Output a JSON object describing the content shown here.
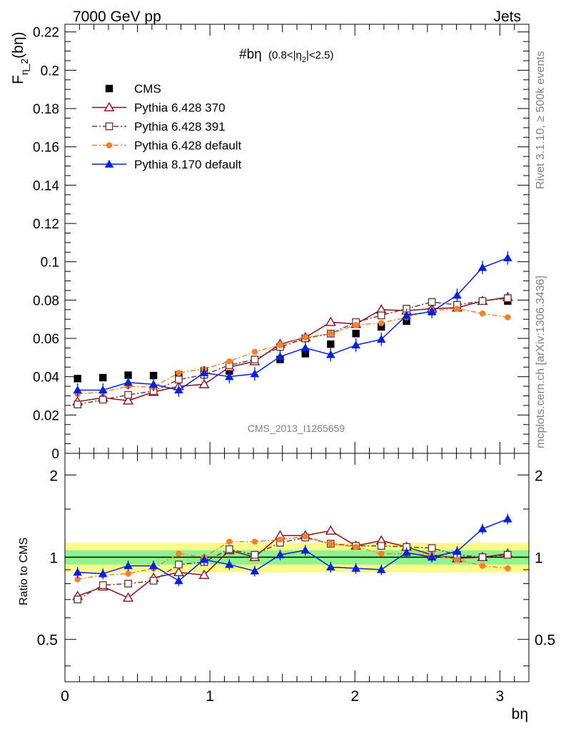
{
  "header": {
    "energy_label": "7000 GeV pp",
    "process_label": "Jets"
  },
  "side_labels": {
    "rivet": "Rivet 3.1.10, ≥ 500k events",
    "mcplots": "mcplots.cern.ch [arXiv:1306.3436]"
  },
  "watermark": "CMS_2013_I1265659",
  "colors": {
    "cms": "#000000",
    "p370": "#8b0d1a",
    "p391": "#6b3d3d",
    "p6def": "#ff7f2a",
    "p8def": "#0022dd",
    "band_inner": "#8ef58e",
    "band_outer": "#fbfb8c"
  },
  "chart_data": [
    {
      "type": "scatter",
      "title": "#bη (0.8<|η₂|<2.5)",
      "title_main": "#bη",
      "title_cut_pre": "(0.8<|η",
      "title_cut_sub": "2",
      "title_cut_post": "|<2.5)",
      "ylabel_main": "F",
      "ylabel_sub": "η_2",
      "ylabel_post": "(bη)",
      "xlim": [
        0,
        3.2
      ],
      "ylim": [
        0,
        0.224
      ],
      "yticks": [
        "0",
        "0.02",
        "0.04",
        "0.06",
        "0.08",
        "0.1",
        "0.12",
        "0.14",
        "0.16",
        "0.18",
        "0.2",
        "0.22"
      ],
      "x": [
        0.087,
        0.262,
        0.436,
        0.611,
        0.785,
        0.96,
        1.134,
        1.309,
        1.484,
        1.658,
        1.833,
        2.007,
        2.182,
        2.356,
        2.531,
        2.705,
        2.88,
        3.054
      ],
      "legend_position": "top-left",
      "series": [
        {
          "name": "CMS",
          "marker": "square-filled",
          "values": [
            0.039,
            0.0395,
            0.0408,
            0.0406,
            0.041,
            0.043,
            0.043,
            0.048,
            0.049,
            0.052,
            0.057,
            0.0625,
            0.066,
            0.069,
            0.074,
            0.077,
            0.0795,
            0.0795
          ]
        },
        {
          "name": "Pythia 6.428 370",
          "marker": "triangle-open",
          "values": [
            0.027,
            0.029,
            0.0275,
            0.032,
            0.035,
            0.036,
            0.045,
            0.048,
            0.057,
            0.0605,
            0.0685,
            0.0675,
            0.075,
            0.0745,
            0.0755,
            0.076,
            0.0795,
            0.0815
          ]
        },
        {
          "name": "Pythia 6.428 391",
          "marker": "square-open",
          "values": [
            0.0255,
            0.028,
            0.0305,
            0.0325,
            0.0385,
            0.041,
            0.046,
            0.049,
            0.0555,
            0.06,
            0.0625,
            0.0685,
            0.072,
            0.0755,
            0.079,
            0.0775,
            0.0795,
            0.081
          ]
        },
        {
          "name": "Pythia 6.428 default",
          "marker": "circle-filled",
          "values": [
            0.031,
            0.032,
            0.035,
            0.0345,
            0.042,
            0.044,
            0.048,
            0.053,
            0.0565,
            0.0605,
            0.0625,
            0.067,
            0.068,
            0.071,
            0.0745,
            0.0755,
            0.073,
            0.071
          ]
        },
        {
          "name": "Pythia 8.170 default",
          "marker": "triangle-filled",
          "values": [
            0.033,
            0.033,
            0.037,
            0.036,
            0.033,
            0.042,
            0.04,
            0.0415,
            0.0505,
            0.055,
            0.0515,
            0.0565,
            0.0595,
            0.072,
            0.074,
            0.0825,
            0.097,
            0.102
          ]
        }
      ]
    },
    {
      "type": "scatter",
      "ylabel": "Ratio to CMS",
      "xlabel": "bη",
      "xlim": [
        0,
        3.2
      ],
      "ylim": [
        0.35,
        2.4
      ],
      "yscale": "log",
      "yticks": [
        "0.5",
        "1",
        "2"
      ],
      "xticks": [
        "0",
        "1",
        "2",
        "3"
      ],
      "x": [
        0.087,
        0.262,
        0.436,
        0.611,
        0.785,
        0.96,
        1.134,
        1.309,
        1.484,
        1.658,
        1.833,
        2.007,
        2.182,
        2.356,
        2.531,
        2.705,
        2.88,
        3.054
      ],
      "reference_line": 1.0,
      "band_outer": [
        0.88,
        1.13
      ],
      "band_inner": [
        0.94,
        1.06
      ],
      "series": [
        {
          "name": "Pythia 6.428 370",
          "values": [
            0.72,
            0.78,
            0.71,
            0.84,
            0.88,
            0.86,
            1.06,
            1.0,
            1.2,
            1.2,
            1.25,
            1.1,
            1.15,
            1.09,
            1.02,
            0.99,
            1.0,
            1.03
          ]
        },
        {
          "name": "Pythia 6.428 391",
          "values": [
            0.7,
            0.79,
            0.8,
            0.82,
            0.94,
            0.96,
            1.07,
            1.02,
            1.13,
            1.18,
            1.12,
            1.1,
            1.1,
            1.09,
            1.08,
            1.02,
            1.0,
            1.02
          ]
        },
        {
          "name": "Pythia 6.428 default",
          "values": [
            0.83,
            0.86,
            0.87,
            0.91,
            1.03,
            1.0,
            1.14,
            1.14,
            1.16,
            1.19,
            1.12,
            1.09,
            1.03,
            1.03,
            1.02,
            0.98,
            0.93,
            0.91
          ]
        },
        {
          "name": "Pythia 8.170 default",
          "values": [
            0.88,
            0.87,
            0.93,
            0.93,
            0.82,
            0.98,
            0.94,
            0.89,
            1.02,
            1.06,
            0.92,
            0.91,
            0.9,
            1.04,
            1.0,
            1.05,
            1.27,
            1.38
          ]
        }
      ]
    }
  ]
}
